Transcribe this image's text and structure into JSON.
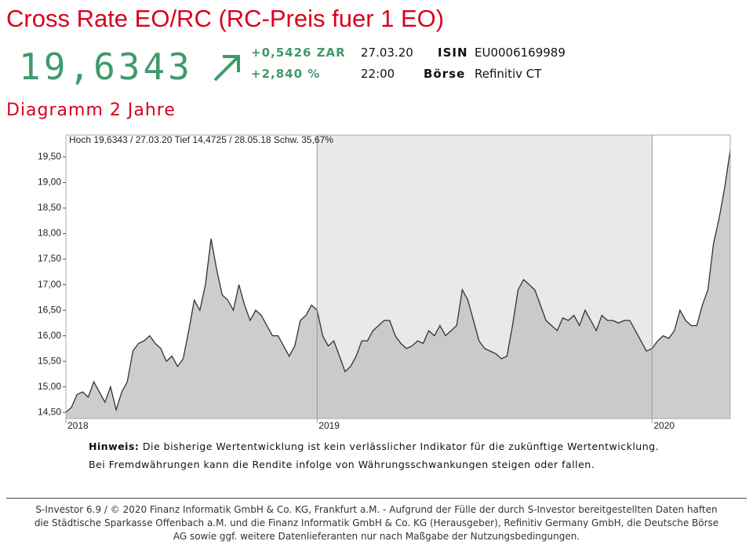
{
  "header": {
    "title": "Cross Rate EO/RC (RC-Preis fuer 1 EO)",
    "price": "19,6343",
    "change_abs": "+0,5426 ZAR",
    "change_pct": "+2,840 %",
    "date": "27.03.20",
    "time": "22:00",
    "isin_label": "ISIN",
    "isin": "EU0006169989",
    "exchange_label": "Börse",
    "exchange": "Refinitiv CT",
    "subtitle": "Diagramm 2 Jahre"
  },
  "chart_data": {
    "type": "area",
    "title": "Hoch 19,6343 / 27.03.20 Tief 14,4725 / 28.05.18 Schw. 35,67%",
    "categories": [
      "2018",
      null,
      null,
      null,
      null,
      null,
      null,
      null,
      null,
      null,
      null,
      null,
      null,
      null,
      null,
      null,
      null,
      null,
      null,
      null,
      null,
      null,
      null,
      null,
      null,
      null,
      null,
      null,
      null,
      null,
      null,
      null,
      null,
      null,
      null,
      null,
      null,
      null,
      null,
      null,
      null,
      null,
      null,
      null,
      null,
      "2019",
      null,
      null,
      null,
      null,
      null,
      null,
      null,
      null,
      null,
      null,
      null,
      null,
      null,
      null,
      null,
      null,
      null,
      null,
      null,
      null,
      null,
      null,
      null,
      null,
      null,
      null,
      null,
      null,
      null,
      null,
      null,
      null,
      null,
      null,
      null,
      null,
      null,
      null,
      null,
      null,
      null,
      null,
      null,
      null,
      null,
      null,
      null,
      null,
      null,
      null,
      null,
      null,
      null,
      null,
      null,
      null,
      null,
      null,
      null,
      "2020",
      null,
      null,
      null,
      null,
      null,
      null,
      null,
      null,
      null,
      null,
      null,
      null,
      null,
      null
    ],
    "values": [
      14.5,
      14.6,
      14.85,
      14.9,
      14.8,
      15.1,
      14.9,
      14.7,
      15.0,
      14.55,
      14.9,
      15.1,
      15.7,
      15.85,
      15.9,
      16.0,
      15.85,
      15.75,
      15.5,
      15.6,
      15.4,
      15.55,
      16.1,
      16.7,
      16.5,
      17.0,
      17.9,
      17.3,
      16.8,
      16.7,
      16.5,
      17.0,
      16.6,
      16.3,
      16.5,
      16.4,
      16.2,
      16.0,
      16.0,
      15.8,
      15.6,
      15.8,
      16.3,
      16.4,
      16.6,
      16.5,
      16.0,
      15.8,
      15.9,
      15.6,
      15.3,
      15.4,
      15.6,
      15.9,
      15.9,
      16.1,
      16.2,
      16.3,
      16.3,
      16.0,
      15.85,
      15.75,
      15.8,
      15.9,
      15.85,
      16.1,
      16.0,
      16.2,
      16.0,
      16.1,
      16.2,
      16.9,
      16.7,
      16.3,
      15.9,
      15.75,
      15.7,
      15.65,
      15.55,
      15.6,
      16.2,
      16.9,
      17.1,
      17.0,
      16.9,
      16.6,
      16.3,
      16.2,
      16.1,
      16.35,
      16.3,
      16.4,
      16.2,
      16.5,
      16.3,
      16.1,
      16.4,
      16.3,
      16.3,
      16.25,
      16.3,
      16.3,
      16.1,
      15.9,
      15.7,
      15.75,
      15.9,
      16.0,
      15.95,
      16.1,
      16.5,
      16.3,
      16.2,
      16.2,
      16.6,
      16.9,
      17.8,
      18.3,
      18.9,
      19.6343
    ],
    "color": "#c4c4c4",
    "line_color": "#333333",
    "ylim": [
      14.38,
      19.93
    ],
    "yticks": [
      {
        "value": 14.5,
        "label": "14,50"
      },
      {
        "value": 15,
        "label": "15,00"
      },
      {
        "value": 15.5,
        "label": "15,50"
      },
      {
        "value": 16,
        "label": "16,00"
      },
      {
        "value": 16.5,
        "label": "16,50"
      },
      {
        "value": 17,
        "label": "17,00"
      },
      {
        "value": 17.5,
        "label": "17,50"
      },
      {
        "value": 18,
        "label": "18,00"
      },
      {
        "value": 18.5,
        "label": "18,50"
      },
      {
        "value": 19,
        "label": "19,00"
      },
      {
        "value": 19.5,
        "label": "19,50"
      }
    ],
    "grid": false
  },
  "notes": {
    "label": "Hinweis:",
    "line1": "Die bisherige Wertentwicklung ist kein verlässlicher Indikator für die zukünftige Wertentwicklung.",
    "line2": "Bei Fremdwährungen kann die Rendite infolge von Währungsschwankungen steigen oder fallen."
  },
  "footer": [
    "S-Investor 6.9 / © 2020 Finanz Informatik GmbH & Co. KG, Frankfurt a.M. - Aufgrund der Fülle der durch S-Investor bereitgestellten Daten haften",
    "die Städtische Sparkasse Offenbach a.M. und die Finanz Informatik GmbH & Co. KG (Herausgeber), Refinitiv Germany GmbH, die Deutsche Börse",
    "AG sowie ggf. weitere Datenlieferanten nur nach Maßgabe der Nutzungsbedingungen."
  ]
}
